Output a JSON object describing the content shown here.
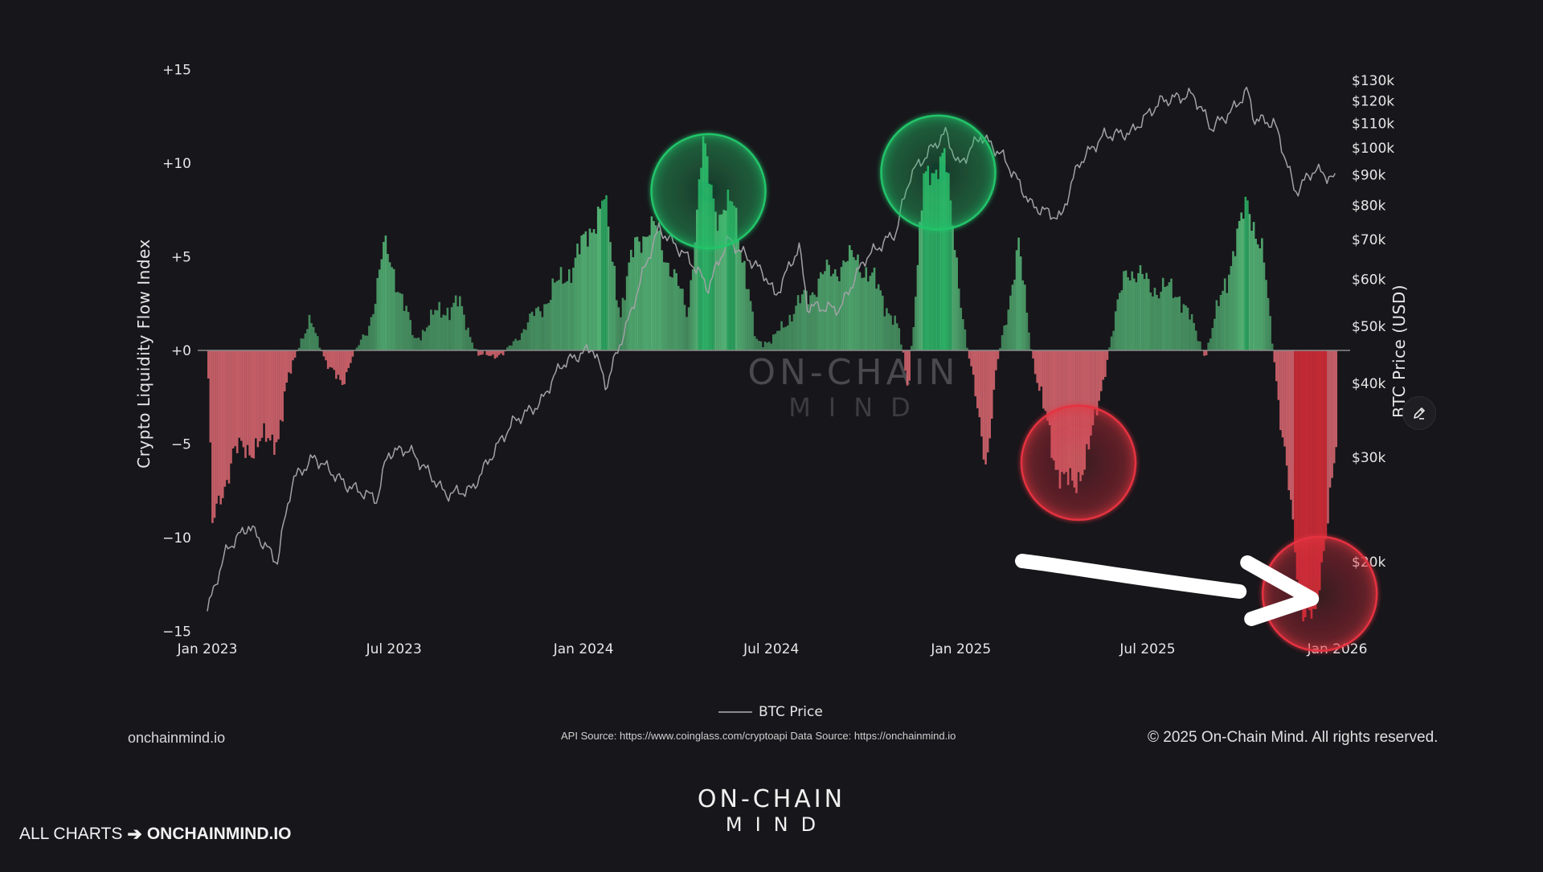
{
  "colors": {
    "background": "#17161a",
    "positive_bar": "#5fcf86",
    "negative_bar": "#e06a74",
    "strong_negative_bar": "#e02e3a",
    "price_line": "#9a9a9e",
    "circle_green": "#22c46a",
    "circle_red": "#e53340"
  },
  "chart_data": {
    "type": "bar",
    "title": "",
    "left_axis": {
      "label": "Crypto Liquidity Flow Index",
      "range": [
        -15,
        15
      ],
      "ticks": [
        "+15",
        "+10",
        "+5",
        "+0",
        "−5",
        "−10",
        "−15"
      ]
    },
    "right_axis": {
      "label": "BTC Price (USD)",
      "scale": "log",
      "ticks": [
        "$130k",
        "$120k",
        "$110k",
        "$100k",
        "$90k",
        "$80k",
        "$70k",
        "$60k",
        "$50k",
        "$40k",
        "$30k",
        "$20k"
      ]
    },
    "x_axis": {
      "ticks": [
        "Jan 2023",
        "Jul 2023",
        "Jan 2024",
        "Jul 2024",
        "Jan 2025",
        "Jul 2025",
        "Jan 2026"
      ]
    },
    "legend": {
      "position": "bottom-center",
      "entries": [
        "BTC Price"
      ]
    },
    "flow_index_anchors": [
      [
        "2023-01-01",
        -1.5
      ],
      [
        "2023-01-05",
        -9.5
      ],
      [
        "2023-01-25",
        -5.5
      ],
      [
        "2023-02-20",
        -5.0
      ],
      [
        "2023-03-10",
        -4.5
      ],
      [
        "2023-03-20",
        -1.5
      ],
      [
        "2023-03-30",
        0.4
      ],
      [
        "2023-04-10",
        1.5
      ],
      [
        "2023-04-25",
        -0.5
      ],
      [
        "2023-05-10",
        -2.0
      ],
      [
        "2023-05-20",
        -0.3
      ],
      [
        "2023-06-05",
        1.0
      ],
      [
        "2023-06-20",
        5.5
      ],
      [
        "2023-07-05",
        3.5
      ],
      [
        "2023-07-20",
        0.5
      ],
      [
        "2023-08-10",
        2.0
      ],
      [
        "2023-09-01",
        2.5
      ],
      [
        "2023-09-20",
        -0.3
      ],
      [
        "2023-10-15",
        -0.2
      ],
      [
        "2023-11-15",
        2.0
      ],
      [
        "2023-12-20",
        4.5
      ],
      [
        "2024-01-20",
        8.0
      ],
      [
        "2024-02-05",
        2.0
      ],
      [
        "2024-02-20",
        6.0
      ],
      [
        "2024-03-10",
        6.5
      ],
      [
        "2024-04-10",
        2.0
      ],
      [
        "2024-04-25",
        11.0
      ],
      [
        "2024-05-10",
        7.0
      ],
      [
        "2024-05-25",
        8.0
      ],
      [
        "2024-06-15",
        0.5
      ],
      [
        "2024-07-01",
        0.5
      ],
      [
        "2024-07-20",
        2.0
      ],
      [
        "2024-08-20",
        4.0
      ],
      [
        "2024-09-20",
        5.0
      ],
      [
        "2024-10-15",
        3.0
      ],
      [
        "2024-11-01",
        1.0
      ],
      [
        "2024-11-10",
        -2.0
      ],
      [
        "2024-11-25",
        9.0
      ],
      [
        "2024-12-15",
        10.5
      ],
      [
        "2025-01-05",
        0.5
      ],
      [
        "2025-01-25",
        -6.0
      ],
      [
        "2025-02-05",
        -0.5
      ],
      [
        "2025-02-25",
        5.5
      ],
      [
        "2025-03-10",
        -0.2
      ],
      [
        "2025-04-01",
        -6.0
      ],
      [
        "2025-04-20",
        -7.5
      ],
      [
        "2025-05-10",
        -4.0
      ],
      [
        "2025-05-25",
        0.5
      ],
      [
        "2025-06-10",
        4.5
      ],
      [
        "2025-07-01",
        3.5
      ],
      [
        "2025-08-01",
        3.0
      ],
      [
        "2025-08-25",
        -0.3
      ],
      [
        "2025-09-10",
        3.0
      ],
      [
        "2025-10-05",
        8.0
      ],
      [
        "2025-10-20",
        5.0
      ],
      [
        "2025-11-01",
        -1.0
      ],
      [
        "2025-11-15",
        -8.0
      ],
      [
        "2025-11-25",
        -13.5
      ],
      [
        "2025-12-10",
        -14.5
      ],
      [
        "2025-12-25",
        -7.0
      ],
      [
        "2025-12-31",
        -5.0
      ]
    ],
    "btc_price_anchors": [
      [
        "2023-01-01",
        16500
      ],
      [
        "2023-01-20",
        21000
      ],
      [
        "2023-02-10",
        23000
      ],
      [
        "2023-03-10",
        20000
      ],
      [
        "2023-03-25",
        27500
      ],
      [
        "2023-04-15",
        30000
      ],
      [
        "2023-05-15",
        27000
      ],
      [
        "2023-06-15",
        25500
      ],
      [
        "2023-06-25",
        30500
      ],
      [
        "2023-07-15",
        31000
      ],
      [
        "2023-08-20",
        26000
      ],
      [
        "2023-09-15",
        26500
      ],
      [
        "2023-10-25",
        34500
      ],
      [
        "2023-11-20",
        37000
      ],
      [
        "2023-12-10",
        43000
      ],
      [
        "2024-01-10",
        46000
      ],
      [
        "2024-01-23",
        39500
      ],
      [
        "2024-02-15",
        52000
      ],
      [
        "2024-03-14",
        73000
      ],
      [
        "2024-04-15",
        64000
      ],
      [
        "2024-05-01",
        58000
      ],
      [
        "2024-05-20",
        70000
      ],
      [
        "2024-06-25",
        61000
      ],
      [
        "2024-07-05",
        56000
      ],
      [
        "2024-07-28",
        68000
      ],
      [
        "2024-08-05",
        54000
      ],
      [
        "2024-09-06",
        53500
      ],
      [
        "2024-09-30",
        65000
      ],
      [
        "2024-10-30",
        72000
      ],
      [
        "2024-11-13",
        90000
      ],
      [
        "2024-12-17",
        106000
      ],
      [
        "2024-12-30",
        93000
      ],
      [
        "2025-01-20",
        105000
      ],
      [
        "2025-02-10",
        97000
      ],
      [
        "2025-03-10",
        80000
      ],
      [
        "2025-04-08",
        76000
      ],
      [
        "2025-04-25",
        94000
      ],
      [
        "2025-05-20",
        105000
      ],
      [
        "2025-06-15",
        106000
      ],
      [
        "2025-07-14",
        120000
      ],
      [
        "2025-08-14",
        123000
      ],
      [
        "2025-09-01",
        108000
      ],
      [
        "2025-09-20",
        115000
      ],
      [
        "2025-10-06",
        125000
      ],
      [
        "2025-10-12",
        112000
      ],
      [
        "2025-11-01",
        110000
      ],
      [
        "2025-11-21",
        84000
      ],
      [
        "2025-12-10",
        92000
      ],
      [
        "2025-12-31",
        88000
      ]
    ],
    "annotations": [
      {
        "type": "circle",
        "color": "green",
        "around": "2024-05-01",
        "value": 8.5
      },
      {
        "type": "circle",
        "color": "green",
        "around": "2024-12-10",
        "value": 9.5
      },
      {
        "type": "circle",
        "color": "red",
        "around": "2025-04-25",
        "value": -6.0
      },
      {
        "type": "circle",
        "color": "red",
        "around": "2025-12-15",
        "value": -13.0
      },
      {
        "type": "arrow",
        "color": "white",
        "points_to": "2025-12-15"
      }
    ]
  },
  "watermark": {
    "line1": "ON-CHAIN",
    "line2": "MIND"
  },
  "footer": {
    "left": "onchainmind.io",
    "middle": "API Source: https://www.coinglass.com/cryptoapi Data Source: https://onchainmind.io",
    "right": "© 2025 On-Chain Mind. All rights reserved."
  },
  "brand": {
    "line1": "ON-CHAIN",
    "line2": "MIND"
  },
  "cta": {
    "text": "ALL CHARTS",
    "arrow": "➔",
    "link": "ONCHAINMIND.IO"
  },
  "icons": {
    "edit": "pencil-icon"
  }
}
